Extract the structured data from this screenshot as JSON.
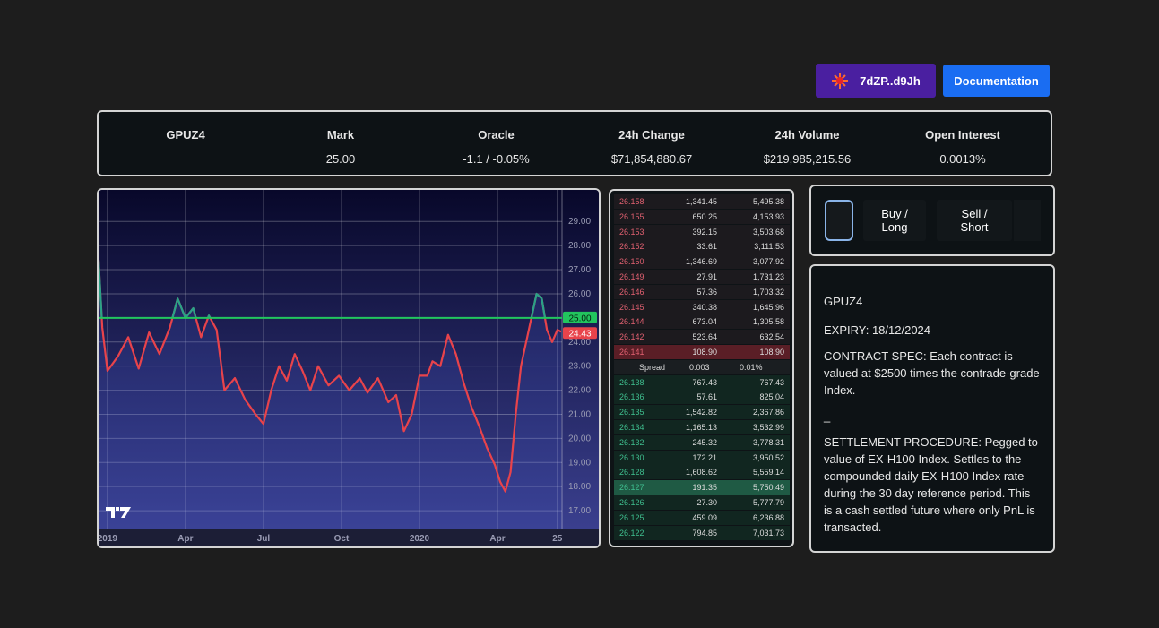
{
  "header": {
    "wallet": "7dZP..d9Jh",
    "docs": "Documentation"
  },
  "stats": {
    "symbol": "GPUZ4",
    "items": [
      {
        "label": "Mark",
        "value": "25.00"
      },
      {
        "label": "Oracle",
        "value": "-1.1 / -0.05%"
      },
      {
        "label": "24h Change",
        "value": "$71,854,880.67"
      },
      {
        "label": "24h Volume",
        "value": "$219,985,215.56"
      },
      {
        "label": "Open Interest",
        "value": "0.0013%"
      }
    ]
  },
  "chart_data": {
    "type": "line",
    "color": "#e8434b",
    "above_color": "#2aa287",
    "x": [
      -0.34,
      -0.2,
      0,
      0.4,
      0.8,
      1.2,
      1.6,
      2.0,
      2.4,
      2.7,
      3.0,
      3.3,
      3.6,
      3.9,
      4.2,
      4.5,
      4.9,
      5.3,
      5.7,
      6.0,
      6.3,
      6.6,
      6.9,
      7.2,
      7.5,
      7.8,
      8.1,
      8.5,
      8.9,
      9.3,
      9.7,
      10.0,
      10.4,
      10.8,
      11.1,
      11.4,
      11.7,
      12.0,
      12.3,
      12.5,
      12.8,
      13.1,
      13.4,
      13.7,
      14.0,
      14.3,
      14.6,
      14.9,
      15.1,
      15.3,
      15.5,
      15.7,
      15.9,
      16.1,
      16.3,
      16.5,
      16.7,
      16.9,
      17.1,
      17.3,
      17.45
    ],
    "values": [
      27.4,
      24.6,
      22.8,
      23.4,
      24.2,
      22.9,
      24.4,
      23.5,
      24.6,
      25.8,
      25.0,
      25.4,
      24.2,
      25.1,
      24.5,
      22.0,
      22.5,
      21.6,
      21.0,
      20.6,
      22.0,
      23.0,
      22.4,
      23.5,
      22.8,
      22.0,
      23.0,
      22.2,
      22.6,
      22.0,
      22.5,
      21.9,
      22.5,
      21.5,
      21.8,
      20.3,
      21.0,
      22.6,
      22.6,
      23.2,
      23.0,
      24.3,
      23.5,
      22.3,
      21.3,
      20.5,
      19.6,
      18.9,
      18.2,
      17.8,
      18.6,
      21.0,
      23.0,
      24.0,
      25.0,
      26.0,
      25.8,
      24.5,
      24.0,
      24.5,
      24.43
    ],
    "xlim": [
      -0.34,
      17.48
    ],
    "ylim": [
      16.26,
      30.31
    ],
    "xticks": [
      {
        "value": 0,
        "label": "2019"
      },
      {
        "value": 3,
        "label": "Apr"
      },
      {
        "value": 6,
        "label": "Jul"
      },
      {
        "value": 9,
        "label": "Oct"
      },
      {
        "value": 12,
        "label": "2020"
      },
      {
        "value": 15,
        "label": "Apr"
      },
      {
        "value": 17.3,
        "label": "25"
      }
    ],
    "yticks": [
      {
        "value": 17,
        "label": "17.00"
      },
      {
        "value": 18,
        "label": "18.00"
      },
      {
        "value": 19,
        "label": "19.00"
      },
      {
        "value": 20,
        "label": "20.00"
      },
      {
        "value": 21,
        "label": "21.00"
      },
      {
        "value": 22,
        "label": "22.00"
      },
      {
        "value": 23,
        "label": "23.00"
      },
      {
        "value": 24,
        "label": "24.00"
      },
      {
        "value": 26,
        "label": "26.00"
      },
      {
        "value": 27,
        "label": "27.00"
      },
      {
        "value": 28,
        "label": "28.00"
      },
      {
        "value": 29,
        "label": "29.00"
      }
    ],
    "price_lines": [
      {
        "value": 25,
        "label": "25.00",
        "color": "#22c55e"
      },
      {
        "value": 24.43,
        "label": "24.43",
        "color": "#e8434b"
      }
    ],
    "grid": true
  },
  "orderbook": {
    "asks": [
      [
        "26.158",
        "1,341.45",
        "5,495.38"
      ],
      [
        "26.155",
        "650.25",
        "4,153.93"
      ],
      [
        "26.153",
        "392.15",
        "3,503.68"
      ],
      [
        "26.152",
        "33.61",
        "3,111.53"
      ],
      [
        "26.150",
        "1,346.69",
        "3,077.92"
      ],
      [
        "26.149",
        "27.91",
        "1,731.23"
      ],
      [
        "26.146",
        "57.36",
        "1,703.32"
      ],
      [
        "26.145",
        "340.38",
        "1,645.96"
      ],
      [
        "26.144",
        "673.04",
        "1,305.58"
      ],
      [
        "26.142",
        "523.64",
        "632.54"
      ],
      [
        "26.141",
        "108.90",
        "108.90"
      ]
    ],
    "spread": [
      "Spread",
      "0.003",
      "0.01%"
    ],
    "bids": [
      [
        "26.138",
        "767.43",
        "767.43"
      ],
      [
        "26.136",
        "57.61",
        "825.04"
      ],
      [
        "26.135",
        "1,542.82",
        "2,367.86"
      ],
      [
        "26.134",
        "1,165.13",
        "3,532.99"
      ],
      [
        "26.132",
        "245.32",
        "3,778.31"
      ],
      [
        "26.130",
        "172.21",
        "3,950.52"
      ],
      [
        "26.128",
        "1,608.62",
        "5,559.14"
      ],
      [
        "26.127",
        "191.35",
        "5,750.49"
      ],
      [
        "26.126",
        "27.30",
        "5,777.79"
      ],
      [
        "26.125",
        "459.09",
        "6,236.88"
      ],
      [
        "26.122",
        "794.85",
        "7,031.73"
      ]
    ]
  },
  "trade": {
    "buy": "Buy / Long",
    "sell": "Sell / Short"
  },
  "info": [
    "GPUZ4",
    "EXPIRY: 18/12/2024",
    "CONTRACT SPEC: Each contract is valued at $2500 times the contrade-grade Index.",
    "_",
    "SETTLEMENT PROCEDURE: Pegged to value of EX-H100 Index. Settles to the compounded daily EX-H100 Index rate during the 30 day reference period. This is a cash settled future where only PnL is transacted."
  ]
}
